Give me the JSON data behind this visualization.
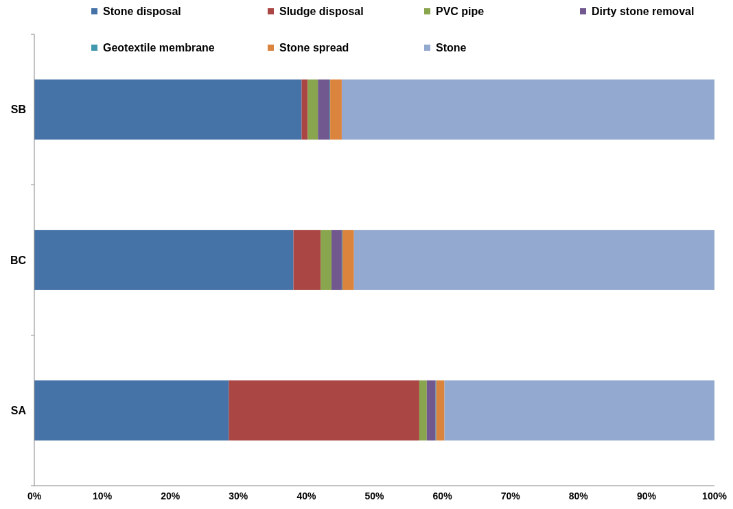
{
  "chart_data": {
    "type": "bar",
    "orientation": "horizontal",
    "stacked": true,
    "categories": [
      "SB",
      "BC",
      "SA"
    ],
    "series": [
      {
        "name": "Stone disposal",
        "color": "#4572a7",
        "values": [
          39.3,
          38.1,
          28.6
        ]
      },
      {
        "name": "Sludge disposal",
        "color": "#aa4643",
        "values": [
          0.9,
          4.0,
          28.0
        ]
      },
      {
        "name": "PVC pipe",
        "color": "#89a54e",
        "values": [
          1.5,
          1.6,
          1.1
        ]
      },
      {
        "name": "Dirty stone removal",
        "color": "#71588f",
        "values": [
          1.7,
          1.5,
          1.3
        ]
      },
      {
        "name": "Geotextile membrane",
        "color": "#4198af",
        "values": [
          0.1,
          0.1,
          0.1
        ]
      },
      {
        "name": "Stone spread",
        "color": "#db843d",
        "values": [
          1.7,
          1.7,
          1.2
        ]
      },
      {
        "name": "Stone",
        "color": "#93a9cf",
        "values": [
          54.8,
          53.0,
          39.7
        ]
      }
    ],
    "xlim": [
      0,
      100
    ],
    "xticks": [
      {
        "value": 0,
        "label": "0%"
      },
      {
        "value": 10,
        "label": "10%"
      },
      {
        "value": 20,
        "label": "20%"
      },
      {
        "value": 30,
        "label": "30%"
      },
      {
        "value": 40,
        "label": "40%"
      },
      {
        "value": 50,
        "label": "50%"
      },
      {
        "value": 60,
        "label": "60%"
      },
      {
        "value": 70,
        "label": "70%"
      },
      {
        "value": 80,
        "label": "80%"
      },
      {
        "value": 90,
        "label": "90%"
      },
      {
        "value": 100,
        "label": "100%"
      }
    ],
    "legend": "top",
    "grid": false
  }
}
